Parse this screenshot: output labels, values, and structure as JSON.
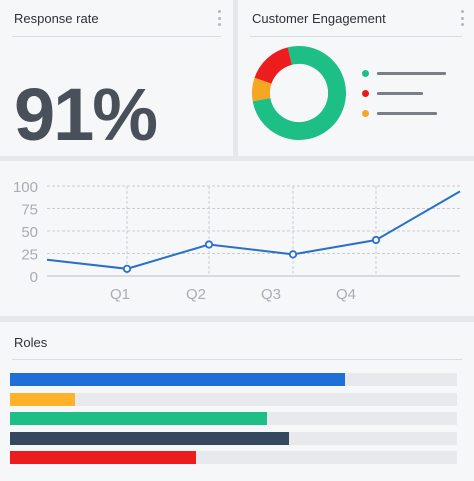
{
  "response_card": {
    "title": "Response rate",
    "value": "91%"
  },
  "engagement_card": {
    "title": "Customer Engagement",
    "donut": [
      {
        "color": "#1dbf87",
        "fraction": 0.76
      },
      {
        "color": "#f5a623",
        "fraction": 0.08
      },
      {
        "color": "#ee1d1d",
        "fraction": 0.16
      }
    ],
    "legend": [
      {
        "color": "#1dbf87"
      },
      {
        "color": "#e81b1b"
      },
      {
        "color": "#f5a623"
      }
    ]
  },
  "chart_data": {
    "type": "line",
    "categories": [
      "Q1",
      "Q2",
      "Q3",
      "Q4"
    ],
    "x_ticks": [
      "Q1",
      "Q2",
      "Q3",
      "Q4"
    ],
    "y_ticks": [
      "100",
      "75",
      "50",
      "25",
      "0"
    ],
    "ylim": [
      0,
      100
    ],
    "grid": true,
    "series": [
      {
        "color": "#2a6fcb",
        "points": [
          {
            "x": 0,
            "y": 18,
            "marker": false
          },
          {
            "x": 1,
            "y": 8,
            "marker": true
          },
          {
            "x": 2,
            "y": 35,
            "marker": true
          },
          {
            "x": 3,
            "y": 24,
            "marker": true
          },
          {
            "x": 4,
            "y": 40,
            "marker": true
          },
          {
            "x": 5,
            "y": 94,
            "marker": false
          }
        ]
      }
    ]
  },
  "roles_card": {
    "title": "Roles",
    "bars": [
      {
        "color": "#1f6fd8",
        "value": 0.75
      },
      {
        "color": "#fdb22a",
        "value": 0.145
      },
      {
        "color": "#1dbf87",
        "value": 0.575
      },
      {
        "color": "#34485f",
        "value": 0.625
      },
      {
        "color": "#ee1d1d",
        "value": 0.415
      }
    ]
  }
}
